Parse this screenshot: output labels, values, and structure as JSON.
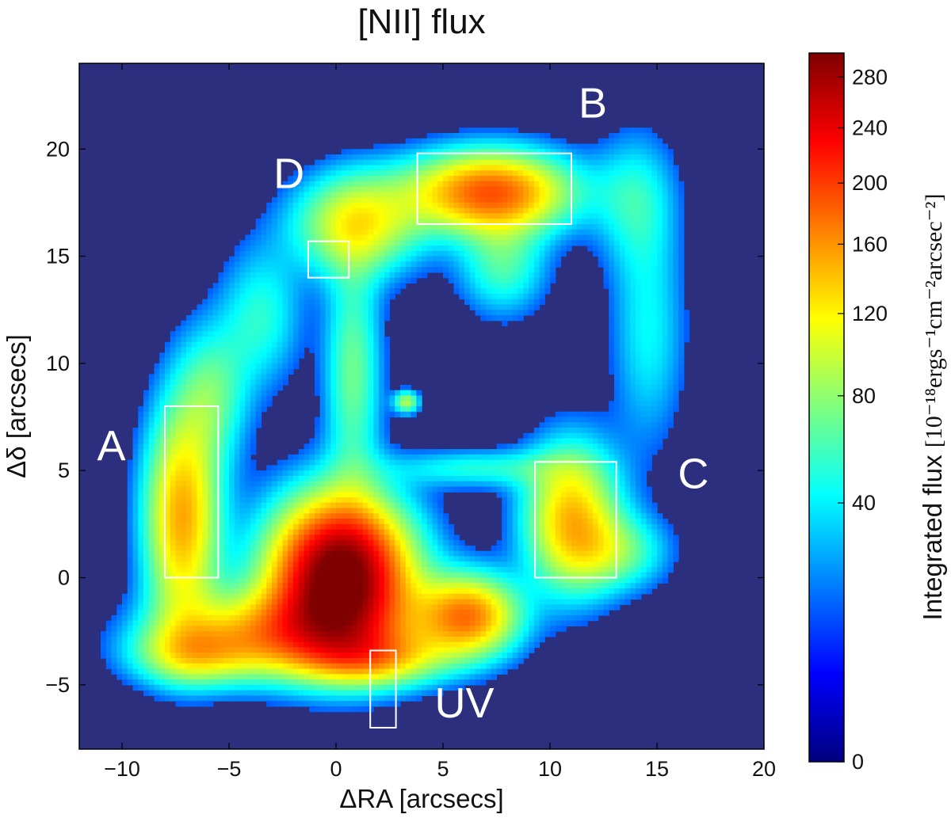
{
  "chart_data": {
    "type": "heatmap",
    "title": "[NII] flux",
    "xlabel": "ΔRA [arcsecs]",
    "ylabel": "Δδ [arcsecs]",
    "xlim": [
      -12,
      20
    ],
    "ylim": [
      -8,
      24
    ],
    "x_ticks": [
      -10,
      -5,
      0,
      5,
      10,
      15,
      20
    ],
    "x_tick_labels": [
      "−10",
      "−5",
      "0",
      "5",
      "10",
      "15",
      "20"
    ],
    "y_ticks": [
      -5,
      0,
      5,
      10,
      15,
      20
    ],
    "y_tick_labels": [
      "−5",
      "0",
      "5",
      "10",
      "15",
      "20"
    ],
    "colorbar": {
      "label_prefix": "Integrated flux ",
      "label_unit": "[10⁻¹⁸ergs⁻¹cm⁻²arcsec⁻²]",
      "range": [
        0,
        300
      ],
      "scale": "sqrt",
      "ticks": [
        0,
        40,
        80,
        120,
        160,
        200,
        240,
        280
      ],
      "colormap": [
        "#00007f",
        "#0000ff",
        "#007fff",
        "#00ffff",
        "#7fff7f",
        "#ffff00",
        "#ff7f00",
        "#ff0000",
        "#7f0000"
      ]
    },
    "background_color": "#2b2f7e",
    "regions": [
      {
        "label": "A",
        "x0": -8.0,
        "x1": -5.5,
        "y0": 0.0,
        "y1": 8.0
      },
      {
        "label": "B",
        "x0": 3.8,
        "x1": 11.0,
        "y0": 16.5,
        "y1": 19.8
      },
      {
        "label": "C",
        "x0": 9.3,
        "x1": 13.1,
        "y0": 0.0,
        "y1": 5.4
      },
      {
        "label": "D",
        "x0": -1.3,
        "x1": 0.6,
        "y0": 14.0,
        "y1": 15.7
      },
      {
        "label": "UV",
        "x0": 1.6,
        "x1": 2.8,
        "y0": -7.0,
        "y1": -3.4
      }
    ],
    "region_labels": [
      {
        "text": "A",
        "x": -10.5,
        "y": 6.0
      },
      {
        "text": "B",
        "x": 12.0,
        "y": 22.0
      },
      {
        "text": "C",
        "x": 16.7,
        "y": 4.7
      },
      {
        "text": "D",
        "x": -2.2,
        "y": 18.7
      },
      {
        "text": "UV",
        "x": 6.0,
        "y": -6.0
      }
    ],
    "emission": [
      {
        "name": "central-source",
        "x": 0.2,
        "y": 0.2,
        "sx": 2.2,
        "sy": 2.4,
        "peak": 320
      },
      {
        "name": "ring-south-arc",
        "x": -2.5,
        "y": -2.6,
        "sx": 3.6,
        "sy": 1.4,
        "peak": 130
      },
      {
        "name": "ring-south-arc-2",
        "x": 6.2,
        "y": -1.8,
        "sx": 1.6,
        "sy": 1.3,
        "peak": 165
      },
      {
        "name": "ring-west-A",
        "x": -7.2,
        "y": 2.8,
        "sx": 1.2,
        "sy": 3.4,
        "peak": 150
      },
      {
        "name": "ring-west-upper",
        "x": -5.8,
        "y": 8.6,
        "sx": 1.2,
        "sy": 2.2,
        "peak": 60
      },
      {
        "name": "ring-northwest",
        "x": -3.5,
        "y": 12.2,
        "sx": 1.3,
        "sy": 2.2,
        "peak": 50
      },
      {
        "name": "ring-north-D",
        "x": 1.0,
        "y": 16.5,
        "sx": 2.0,
        "sy": 1.6,
        "peak": 115
      },
      {
        "name": "ring-north-B",
        "x": 7.2,
        "y": 18.0,
        "sx": 2.6,
        "sy": 1.3,
        "peak": 185
      },
      {
        "name": "filament-inner",
        "x": 0.8,
        "y": 9.6,
        "sx": 0.9,
        "sy": 3.6,
        "peak": 70
      },
      {
        "name": "filament-B-down",
        "x": 7.8,
        "y": 14.6,
        "sx": 1.4,
        "sy": 1.6,
        "peak": 60
      },
      {
        "name": "ring-northeast",
        "x": 14.0,
        "y": 17.6,
        "sx": 1.3,
        "sy": 2.2,
        "peak": 45
      },
      {
        "name": "ring-east",
        "x": 14.6,
        "y": 11.4,
        "sx": 1.2,
        "sy": 3.6,
        "peak": 42
      },
      {
        "name": "ring-east-C",
        "x": 11.0,
        "y": 2.8,
        "sx": 1.5,
        "sy": 2.3,
        "peak": 140
      },
      {
        "name": "ring-east-lower",
        "x": 13.2,
        "y": 1.2,
        "sx": 1.6,
        "sy": 1.2,
        "peak": 60
      },
      {
        "name": "arc-middle",
        "x": 6.6,
        "y": 5.1,
        "sx": 2.6,
        "sy": 0.6,
        "peak": 48
      },
      {
        "name": "knot-center",
        "x": 3.3,
        "y": 8.2,
        "sx": 0.4,
        "sy": 0.35,
        "peak": 90
      },
      {
        "name": "ring-southwest",
        "x": -6.6,
        "y": -3.6,
        "sx": 2.0,
        "sy": 1.0,
        "peak": 80
      },
      {
        "name": "ring-south-mid",
        "x": 2.0,
        "y": -3.8,
        "sx": 2.2,
        "sy": 0.9,
        "peak": 90
      }
    ]
  }
}
